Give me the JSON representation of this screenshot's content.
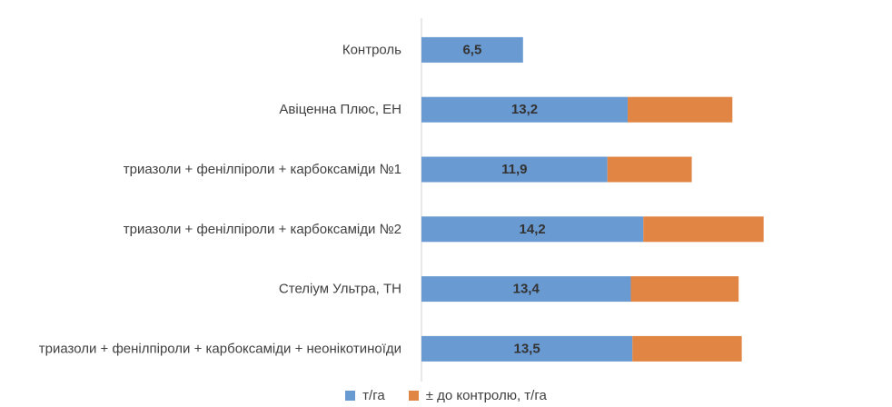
{
  "chart_data": {
    "type": "bar",
    "orientation": "horizontal",
    "stacked": true,
    "categories": [
      "Контроль",
      "Авіценна Плюс, ЕН",
      "триазоли + фенілпіроли + карбоксаміди №1",
      "триазоли + фенілпіроли + карбоксаміди №2",
      "Стеліум Ультра, ТН",
      "триазоли + фенілпіроли + карбоксаміди + неонікотиноїди"
    ],
    "series": [
      {
        "name": "т/га",
        "color": "#6a9ad2",
        "values": [
          6.5,
          13.2,
          11.9,
          14.2,
          13.4,
          13.5
        ],
        "labels": [
          "6,5",
          "13,2",
          "11,9",
          "14,2",
          "13,4",
          "13,5"
        ]
      },
      {
        "name": "± до контролю, т/га",
        "color": "#e08544",
        "values": [
          0,
          6.7,
          5.4,
          7.7,
          6.9,
          7.0
        ]
      }
    ],
    "xlim": [
      0,
      30
    ],
    "grid": false,
    "legend_position": "bottom"
  },
  "legend": {
    "items": [
      {
        "label": "т/га",
        "color": "#6a9ad2"
      },
      {
        "label": "± до контролю, т/га",
        "color": "#e08544"
      }
    ]
  }
}
